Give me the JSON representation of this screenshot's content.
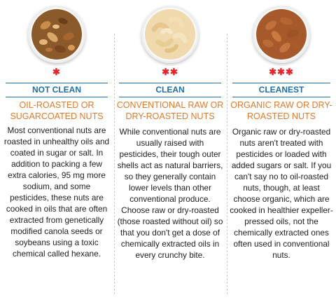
{
  "columns": [
    {
      "stars": "✱",
      "label": "NOT CLEAN",
      "title": "OIL-ROASTED OR SUGARCOATED NUTS",
      "body": "Most conventional nuts are roasted in unhealthy oils and coated in sugar or salt. In addition to packing a few extra calories, 95 mg more sodium, and some pesticides, these nuts are cooked in oils that are often extracted from genetically modified canola seeds or soybeans using a toxic chemical called hexane."
    },
    {
      "stars": "✱✱",
      "label": "CLEAN",
      "title": "CONVENTIONAL RAW OR DRY-ROASTED NUTS",
      "body": "While conventional nuts are usually raised with pesticides, their tough outer shells act as natural barriers, so they generally contain lower levels than other conventional produce. Choose raw or dry-roasted (those roasted without oil) so that you don't get a dose of chemically extracted oils in every crunchy bite."
    },
    {
      "stars": "✱✱✱",
      "label": "CLEANEST",
      "title": "ORGANIC RAW OR DRY-ROASTED NUTS",
      "body": "Organic raw or dry-roasted nuts aren't treated with pesticides or loaded with added sugars or salt. If you can't say no to oil-roasted nuts, though, at least choose organic, which are cooked in healthier expeller-pressed oils, not the chemically extracted ones often used in conventional nuts."
    }
  ],
  "colors": {
    "star": "#e3262b",
    "label": "#1f6fa6",
    "title": "#e07a2c"
  },
  "images": [
    "mixed-nuts-bowl",
    "cashews-bowl",
    "almonds-bowl"
  ]
}
